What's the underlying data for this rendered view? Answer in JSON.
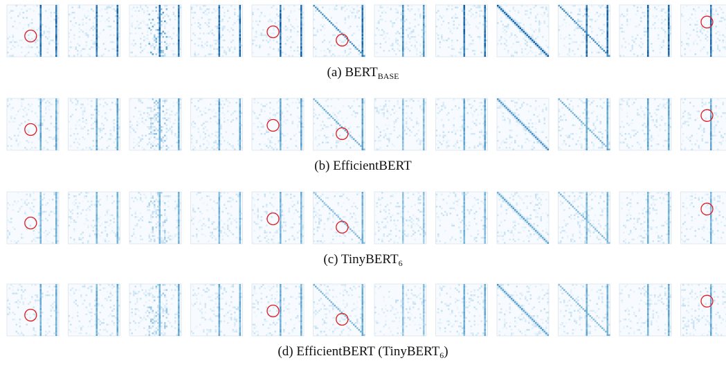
{
  "rows": [
    {
      "caption": {
        "prefix": "(a) BERT",
        "sub": "BASE",
        "suffix": ""
      },
      "strength": 1.0,
      "markers": [
        1,
        5,
        6,
        12
      ],
      "marker_pos": {
        "1": [
          0.55,
          0.6
        ],
        "5": [
          0.5,
          0.52
        ],
        "6": [
          0.65,
          0.68
        ],
        "12": [
          0.6,
          0.33
        ]
      }
    },
    {
      "caption": {
        "prefix": "(b) EfficientBERT",
        "sub": "",
        "suffix": ""
      },
      "strength": 0.65,
      "markers": [
        1,
        5,
        6,
        12
      ],
      "marker_pos": {
        "1": [
          0.55,
          0.6
        ],
        "5": [
          0.5,
          0.52
        ],
        "6": [
          0.65,
          0.68
        ],
        "12": [
          0.6,
          0.33
        ]
      }
    },
    {
      "caption": {
        "prefix": "(c) TinyBERT",
        "sub": "6",
        "suffix": ""
      },
      "strength": 0.55,
      "markers": [
        1,
        5,
        6,
        12
      ],
      "marker_pos": {
        "1": [
          0.55,
          0.6
        ],
        "5": [
          0.5,
          0.52
        ],
        "6": [
          0.65,
          0.68
        ],
        "12": [
          0.6,
          0.33
        ]
      }
    },
    {
      "caption": {
        "prefix": "(d) EfficientBERT (TinyBERT",
        "sub": "6",
        "suffix": ")"
      },
      "strength": 0.6,
      "markers": [
        1,
        5,
        6,
        12
      ],
      "marker_pos": {
        "1": [
          0.55,
          0.6
        ],
        "5": [
          0.5,
          0.52
        ],
        "6": [
          0.65,
          0.68
        ],
        "12": [
          0.6,
          0.33
        ]
      }
    }
  ],
  "heads": [
    {
      "pattern": "vertical",
      "cols": [
        0.65,
        0.98
      ]
    },
    {
      "pattern": "vertical",
      "cols": [
        0.55,
        0.98
      ]
    },
    {
      "pattern": "mixed",
      "cols": [
        0.6,
        0.98
      ]
    },
    {
      "pattern": "vertical",
      "cols": [
        0.55,
        0.98
      ]
    },
    {
      "pattern": "vertical",
      "cols": [
        0.55,
        0.98
      ]
    },
    {
      "pattern": "diag-vertical",
      "cols": [
        0.98
      ]
    },
    {
      "pattern": "faint-vertical",
      "cols": [
        0.55,
        0.98
      ]
    },
    {
      "pattern": "vertical",
      "cols": [
        0.55,
        0.98
      ]
    },
    {
      "pattern": "diagonal",
      "cols": []
    },
    {
      "pattern": "diag-vertical",
      "cols": [
        0.55,
        0.98
      ]
    },
    {
      "pattern": "vertical",
      "cols": [
        0.55,
        0.98
      ]
    },
    {
      "pattern": "vertical",
      "cols": [
        0.6
      ]
    }
  ],
  "colors": {
    "cmap_low": "#f7fbff",
    "cmap_high": "#08519c",
    "marker": "#e31a1c",
    "frame": "#dbe3ec"
  }
}
